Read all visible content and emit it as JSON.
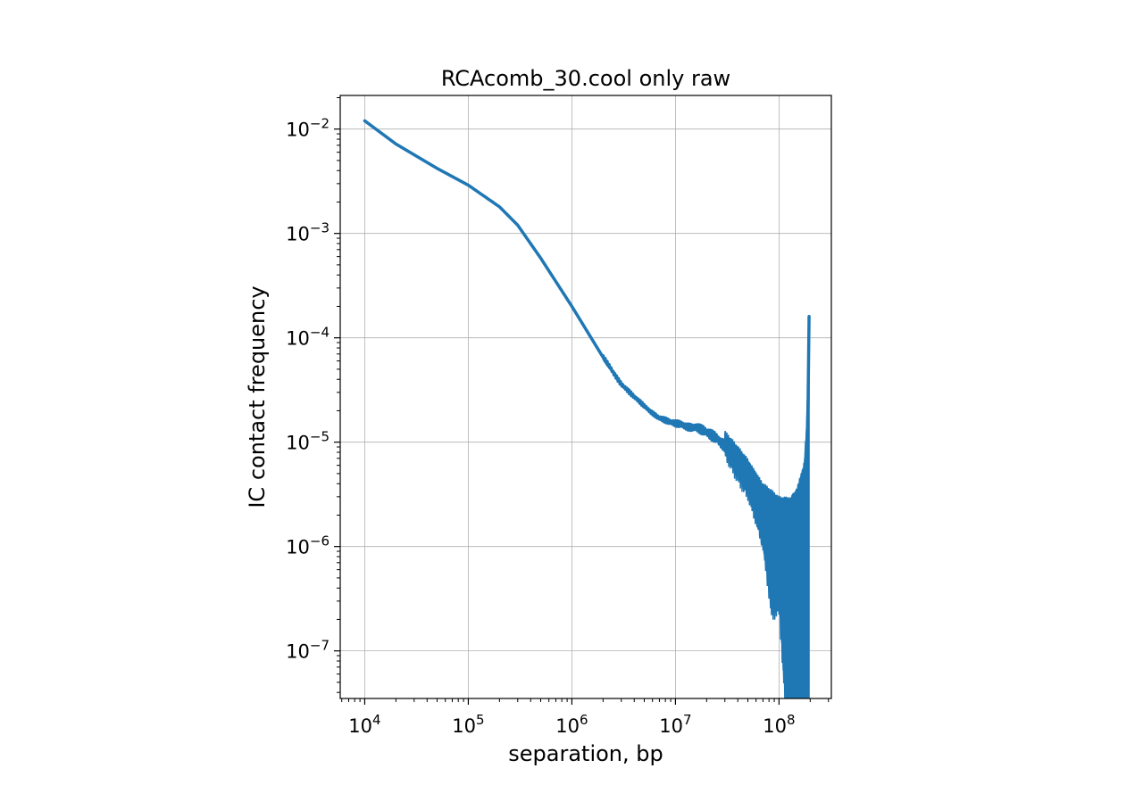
{
  "chart_data": {
    "type": "line",
    "title": "RCAcomb_30.cool only raw",
    "xlabel": "separation, bp",
    "ylabel": "IC contact frequency",
    "xscale": "log",
    "yscale": "log",
    "xlim": [
      5800,
      320000000
    ],
    "ylim": [
      3.5e-08,
      0.021
    ],
    "grid": true,
    "line_color": "#1f77b4",
    "x_ticks": [
      {
        "base": "10",
        "exp": "4",
        "value": 10000
      },
      {
        "base": "10",
        "exp": "5",
        "value": 100000
      },
      {
        "base": "10",
        "exp": "6",
        "value": 1000000
      },
      {
        "base": "10",
        "exp": "7",
        "value": 10000000
      },
      {
        "base": "10",
        "exp": "8",
        "value": 100000000
      }
    ],
    "y_ticks": [
      {
        "base": "10",
        "exp": "−2",
        "value": 0.01
      },
      {
        "base": "10",
        "exp": "−3",
        "value": 0.001
      },
      {
        "base": "10",
        "exp": "−4",
        "value": 0.0001
      },
      {
        "base": "10",
        "exp": "−5",
        "value": 1e-05
      },
      {
        "base": "10",
        "exp": "−6",
        "value": 1e-06
      },
      {
        "base": "10",
        "exp": "−7",
        "value": 1e-07
      }
    ],
    "series": [
      {
        "x": [
          10000,
          20000,
          50000,
          100000,
          200000,
          300000,
          500000,
          1000000,
          2000000,
          3000000,
          5000000,
          7000000,
          10000000,
          15000000,
          20000000,
          30000000,
          40000000,
          50000000,
          60000000,
          70000000,
          80000000,
          100000000,
          120000000,
          140000000,
          160000000,
          180000000,
          190000000,
          195000000
        ],
        "y": [
          0.012,
          0.0072,
          0.0042,
          0.0029,
          0.0018,
          0.0012,
          0.00058,
          0.0002,
          6.5e-05,
          3.6e-05,
          2.2e-05,
          1.7e-05,
          1.5e-05,
          1.4e-05,
          1.25e-05,
          9.5e-06,
          7.2e-06,
          5e-06,
          3.8e-06,
          2.8e-06,
          2.2e-06,
          1.8e-06,
          1.8e-06,
          1.9e-06,
          2.2e-06,
          4.5e-06,
          1.8e-05,
          0.00016
        ],
        "noise_band": {
          "x_start": 30000000,
          "x_end": 195000000,
          "low_points": [
            {
              "x": 30000000,
              "y": 8.5e-06
            },
            {
              "x": 50000000,
              "y": 3.5e-06
            },
            {
              "x": 70000000,
              "y": 1.1e-06
            },
            {
              "x": 85000000,
              "y": 2.5e-07
            },
            {
              "x": 100000000,
              "y": 2.8e-07
            },
            {
              "x": 115000000,
              "y": 3.5e-08
            },
            {
              "x": 195000000,
              "y": 3.5e-08
            }
          ],
          "high_points": [
            {
              "x": 30000000,
              "y": 1.2e-05
            },
            {
              "x": 50000000,
              "y": 6.5e-06
            },
            {
              "x": 70000000,
              "y": 3.8e-06
            },
            {
              "x": 100000000,
              "y": 2.8e-06
            },
            {
              "x": 130000000,
              "y": 2.8e-06
            },
            {
              "x": 150000000,
              "y": 3.5e-06
            },
            {
              "x": 175000000,
              "y": 6e-06
            },
            {
              "x": 185000000,
              "y": 1.4e-05
            },
            {
              "x": 190000000,
              "y": 4e-05
            },
            {
              "x": 195000000,
              "y": 0.00017
            }
          ]
        }
      }
    ]
  }
}
